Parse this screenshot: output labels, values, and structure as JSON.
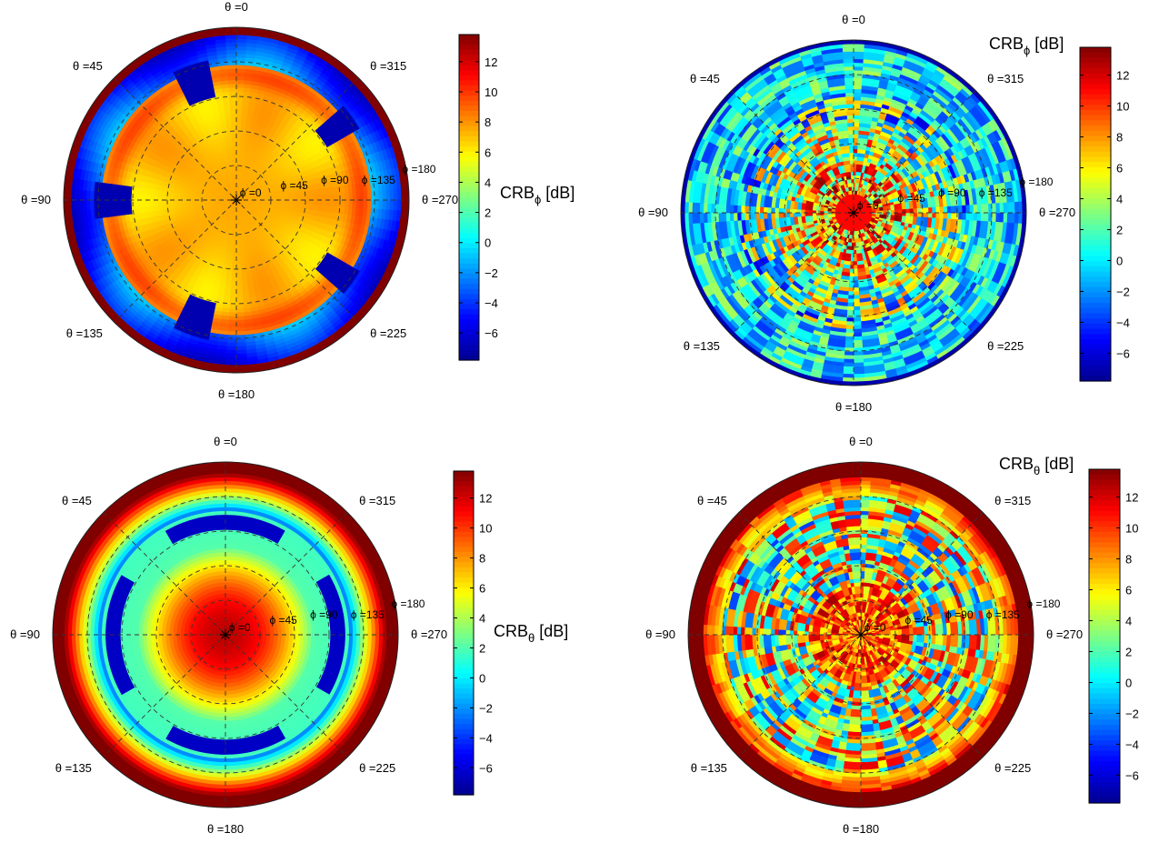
{
  "colormap": {
    "name": "jet",
    "stops": [
      "#00008f",
      "#0000ff",
      "#0080ff",
      "#00ffff",
      "#80ff80",
      "#ffff00",
      "#ff8000",
      "#ff0000",
      "#800000"
    ],
    "range_db": [
      -7.8,
      13.8
    ]
  },
  "grid": {
    "style": "dashed",
    "color": "#333333"
  },
  "chart_data": [
    {
      "type": "heatmap",
      "projection": "polar",
      "quantity": "CRB_phi",
      "colorbar_label": {
        "main": "CRB",
        "sub": "ϕ",
        "unit": " [dB]"
      },
      "colorbar_ticks": [
        12,
        10,
        8,
        6,
        4,
        2,
        0,
        -2,
        -4,
        -6
      ],
      "clim": [
        -7.8,
        13.8
      ],
      "angle_labels": [
        "θ =0",
        "θ =45",
        "θ =90",
        "θ =135",
        "θ =180",
        "θ =225",
        "θ =270",
        "θ =315"
      ],
      "ring_labels": [
        "ϕ =0",
        "ϕ =45",
        "ϕ =90",
        "ϕ =135",
        "ϕ =180"
      ],
      "pattern": "smooth-phi",
      "description_values": {
        "center_db": 7.5,
        "ring_peak_db": 9,
        "dark_spots_db": -7,
        "outer_band_db": -5,
        "edge_db": 13.8
      }
    },
    {
      "type": "heatmap",
      "projection": "polar",
      "quantity": "CRB_phi",
      "colorbar_label": {
        "main": "CRB",
        "sub": "ϕ",
        "unit": " [dB]"
      },
      "colorbar_ticks": [
        12,
        10,
        8,
        6,
        4,
        2,
        0,
        -2,
        -4,
        -6
      ],
      "clim": [
        -7.8,
        13.8
      ],
      "angle_labels": [
        "θ =0",
        "θ =45",
        "θ =90",
        "θ =135",
        "θ =180",
        "θ =225",
        "θ =270",
        "θ =315"
      ],
      "ring_labels": [
        "ϕ =0",
        "ϕ =45",
        "ϕ =90",
        "ϕ =135",
        "ϕ =180"
      ],
      "pattern": "noisy-phi"
    },
    {
      "type": "heatmap",
      "projection": "polar",
      "quantity": "CRB_theta",
      "colorbar_label": {
        "main": "CRB",
        "sub": "θ",
        "unit": " [dB]"
      },
      "colorbar_ticks": [
        12,
        10,
        8,
        6,
        4,
        2,
        0,
        -2,
        -4,
        -6
      ],
      "clim": [
        -7.8,
        13.8
      ],
      "angle_labels": [
        "θ =0",
        "θ =45",
        "θ =90",
        "θ =135",
        "θ =180",
        "θ =225",
        "θ =270",
        "θ =315"
      ],
      "ring_labels": [
        "ϕ =0",
        "ϕ =45",
        "ϕ =90",
        "ϕ =135",
        "ϕ =180"
      ],
      "pattern": "smooth-theta",
      "description_values": {
        "center_db": 12,
        "mid_db": 2,
        "blue_arcs_db": -6,
        "edge_db": 13.8
      }
    },
    {
      "type": "heatmap",
      "projection": "polar",
      "quantity": "CRB_theta",
      "colorbar_label": {
        "main": "CRB",
        "sub": "θ",
        "unit": " [dB]"
      },
      "colorbar_ticks": [
        12,
        10,
        8,
        6,
        4,
        2,
        0,
        -2,
        -4,
        -6
      ],
      "clim": [
        -7.8,
        13.8
      ],
      "angle_labels": [
        "θ =0",
        "θ =45",
        "θ =90",
        "θ =135",
        "θ =180",
        "θ =225",
        "θ =270",
        "θ =315"
      ],
      "ring_labels": [
        "ϕ =0",
        "ϕ =45",
        "ϕ =90",
        "ϕ =135",
        "ϕ =180"
      ],
      "pattern": "noisy-theta"
    }
  ]
}
